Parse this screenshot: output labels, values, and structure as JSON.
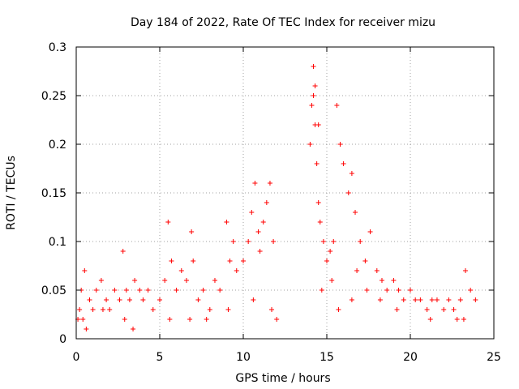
{
  "chart_data": {
    "type": "scatter",
    "title": "Day 184 of 2022, Rate Of TEC Index for receiver mizu",
    "xlabel": "GPS time / hours",
    "ylabel": "ROTI / TECUs",
    "xlim": [
      0,
      25
    ],
    "ylim": [
      0,
      0.3
    ],
    "xticks": [
      0,
      5,
      10,
      15,
      20,
      25
    ],
    "yticks": [
      0,
      0.05,
      0.1,
      0.15,
      0.2,
      0.25,
      0.3
    ],
    "ytick_labels": [
      "0",
      "0.05",
      "0.1",
      "0.15",
      "0.2",
      "0.25",
      "0.3"
    ],
    "grid": true,
    "marker": "+",
    "color": "#ff0000",
    "x": [
      0.1,
      0.2,
      0.3,
      0.5,
      0.8,
      1.0,
      1.2,
      1.5,
      1.8,
      2.0,
      2.3,
      2.6,
      2.8,
      3.0,
      3.2,
      3.5,
      3.8,
      4.0,
      4.3,
      4.6,
      5.0,
      5.3,
      5.5,
      5.7,
      6.0,
      6.3,
      6.6,
      6.9,
      7.0,
      7.3,
      7.6,
      8.0,
      8.3,
      8.6,
      9.0,
      9.2,
      9.4,
      9.6,
      10.0,
      10.3,
      10.5,
      10.7,
      10.9,
      11.0,
      11.2,
      11.4,
      11.6,
      11.8,
      14.0,
      14.1,
      14.2,
      14.3,
      14.4,
      14.5,
      14.6,
      14.8,
      15.0,
      15.2,
      15.4,
      15.6,
      15.8,
      16.0,
      16.3,
      16.5,
      16.7,
      17.0,
      17.3,
      17.6,
      18.0,
      18.3,
      18.6,
      19.0,
      19.3,
      19.6,
      20.0,
      20.3,
      20.6,
      21.0,
      21.3,
      21.6,
      22.0,
      22.3,
      22.6,
      23.0,
      23.3,
      23.6,
      23.9,
      0.4,
      1.6,
      2.9,
      5.6,
      6.8,
      9.1,
      10.6,
      11.7,
      14.2,
      14.3,
      14.5,
      15.7,
      16.5,
      17.4,
      18.2,
      21.2,
      23.2,
      0.6,
      3.4,
      7.8,
      12.0,
      14.7,
      15.3,
      16.8,
      19.2,
      22.8
    ],
    "y": [
      0.02,
      0.03,
      0.05,
      0.07,
      0.04,
      0.03,
      0.05,
      0.06,
      0.04,
      0.03,
      0.05,
      0.04,
      0.09,
      0.05,
      0.04,
      0.06,
      0.05,
      0.04,
      0.05,
      0.03,
      0.04,
      0.06,
      0.12,
      0.08,
      0.05,
      0.07,
      0.06,
      0.11,
      0.08,
      0.04,
      0.05,
      0.03,
      0.06,
      0.05,
      0.12,
      0.08,
      0.1,
      0.07,
      0.08,
      0.1,
      0.13,
      0.16,
      0.11,
      0.09,
      0.12,
      0.14,
      0.16,
      0.1,
      0.2,
      0.24,
      0.28,
      0.22,
      0.18,
      0.14,
      0.12,
      0.1,
      0.08,
      0.09,
      0.1,
      0.24,
      0.2,
      0.18,
      0.15,
      0.17,
      0.13,
      0.1,
      0.08,
      0.11,
      0.07,
      0.06,
      0.05,
      0.06,
      0.05,
      0.04,
      0.05,
      0.04,
      0.04,
      0.03,
      0.04,
      0.04,
      0.03,
      0.04,
      0.03,
      0.04,
      0.07,
      0.05,
      0.04,
      0.02,
      0.03,
      0.02,
      0.02,
      0.02,
      0.03,
      0.04,
      0.03,
      0.25,
      0.26,
      0.22,
      0.03,
      0.04,
      0.05,
      0.04,
      0.02,
      0.02,
      0.01,
      0.01,
      0.02,
      0.02,
      0.05,
      0.06,
      0.07,
      0.03,
      0.02
    ]
  }
}
